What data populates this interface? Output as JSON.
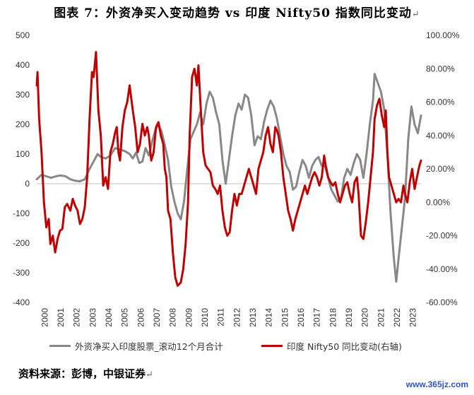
{
  "title": "图表 7：外资净买入变动趋势 vs 印度 Nifty50 指数同比变动",
  "title_mark": "↵",
  "source": "资料来源：彭博，中银证券",
  "source_mark": "↵",
  "watermark": "www.365jz.com",
  "chart_data": {
    "type": "line",
    "left_axis": {
      "min": -400,
      "max": 500,
      "ticks": [
        "500",
        "400",
        "300",
        "200",
        "100",
        "0",
        "-100",
        "-200",
        "-300",
        "-400"
      ]
    },
    "right_axis": {
      "min": -60,
      "max": 100,
      "ticks": [
        "100.00%",
        "80.00%",
        "60.00%",
        "40.00%",
        "20.00%",
        "0.00%",
        "-20.00%",
        "-40.00%",
        "-60.00%"
      ]
    },
    "x_labels": [
      "2000",
      "2001",
      "2002",
      "2003",
      "2004",
      "2005",
      "2006",
      "2007",
      "2008",
      "2009",
      "2010",
      "2011",
      "2012",
      "2013",
      "2014",
      "2015",
      "2016",
      "2017",
      "2018",
      "2019",
      "2020",
      "2021",
      "2022",
      "2023"
    ],
    "series": [
      {
        "name": "外资净买入印度股票_滚动12个月合计",
        "axis": "left",
        "color": "#888888",
        "points": [
          [
            2000.0,
            15
          ],
          [
            2000.3,
            30
          ],
          [
            2000.6,
            25
          ],
          [
            2000.9,
            20
          ],
          [
            2001.2,
            25
          ],
          [
            2001.5,
            28
          ],
          [
            2001.8,
            25
          ],
          [
            2002.1,
            15
          ],
          [
            2002.4,
            10
          ],
          [
            2002.7,
            8
          ],
          [
            2003.0,
            15
          ],
          [
            2003.3,
            50
          ],
          [
            2003.6,
            80
          ],
          [
            2003.8,
            100
          ],
          [
            2004.0,
            90
          ],
          [
            2004.3,
            85
          ],
          [
            2004.6,
            95
          ],
          [
            2004.9,
            120
          ],
          [
            2005.2,
            115
          ],
          [
            2005.5,
            110
          ],
          [
            2005.8,
            100
          ],
          [
            2006.0,
            85
          ],
          [
            2006.2,
            105
          ],
          [
            2006.4,
            70
          ],
          [
            2006.6,
            75
          ],
          [
            2006.8,
            120
          ],
          [
            2007.0,
            95
          ],
          [
            2007.2,
            140
          ],
          [
            2007.4,
            180
          ],
          [
            2007.6,
            200
          ],
          [
            2007.8,
            175
          ],
          [
            2008.0,
            130
          ],
          [
            2008.2,
            80
          ],
          [
            2008.4,
            -10
          ],
          [
            2008.6,
            -60
          ],
          [
            2008.8,
            -100
          ],
          [
            2009.0,
            -120
          ],
          [
            2009.2,
            -60
          ],
          [
            2009.4,
            50
          ],
          [
            2009.6,
            150
          ],
          [
            2009.8,
            175
          ],
          [
            2010.0,
            200
          ],
          [
            2010.2,
            240
          ],
          [
            2010.4,
            200
          ],
          [
            2010.6,
            270
          ],
          [
            2010.8,
            310
          ],
          [
            2011.0,
            290
          ],
          [
            2011.2,
            240
          ],
          [
            2011.4,
            200
          ],
          [
            2011.6,
            80
          ],
          [
            2011.8,
            0
          ],
          [
            2012.0,
            80
          ],
          [
            2012.2,
            160
          ],
          [
            2012.4,
            230
          ],
          [
            2012.6,
            270
          ],
          [
            2012.8,
            250
          ],
          [
            2013.0,
            300
          ],
          [
            2013.2,
            290
          ],
          [
            2013.4,
            230
          ],
          [
            2013.6,
            130
          ],
          [
            2013.8,
            160
          ],
          [
            2014.0,
            150
          ],
          [
            2014.2,
            210
          ],
          [
            2014.4,
            250
          ],
          [
            2014.6,
            280
          ],
          [
            2014.8,
            260
          ],
          [
            2015.0,
            220
          ],
          [
            2015.2,
            160
          ],
          [
            2015.4,
            100
          ],
          [
            2015.6,
            60
          ],
          [
            2015.8,
            40
          ],
          [
            2016.0,
            -20
          ],
          [
            2016.2,
            -10
          ],
          [
            2016.4,
            40
          ],
          [
            2016.6,
            80
          ],
          [
            2016.8,
            60
          ],
          [
            2017.0,
            20
          ],
          [
            2017.2,
            60
          ],
          [
            2017.4,
            80
          ],
          [
            2017.6,
            90
          ],
          [
            2017.8,
            60
          ],
          [
            2018.0,
            60
          ],
          [
            2018.2,
            20
          ],
          [
            2018.4,
            -20
          ],
          [
            2018.6,
            -40
          ],
          [
            2018.8,
            -60
          ],
          [
            2019.0,
            -50
          ],
          [
            2019.2,
            20
          ],
          [
            2019.4,
            50
          ],
          [
            2019.6,
            30
          ],
          [
            2019.8,
            70
          ],
          [
            2020.0,
            100
          ],
          [
            2020.2,
            80
          ],
          [
            2020.4,
            20
          ],
          [
            2020.6,
            100
          ],
          [
            2020.8,
            200
          ],
          [
            2021.0,
            280
          ],
          [
            2021.1,
            370
          ],
          [
            2021.3,
            340
          ],
          [
            2021.5,
            310
          ],
          [
            2021.7,
            250
          ],
          [
            2021.9,
            100
          ],
          [
            2022.1,
            -100
          ],
          [
            2022.3,
            -250
          ],
          [
            2022.45,
            -330
          ],
          [
            2022.6,
            -250
          ],
          [
            2022.8,
            -150
          ],
          [
            2023.0,
            -50
          ],
          [
            2023.2,
            150
          ],
          [
            2023.4,
            260
          ],
          [
            2023.6,
            200
          ],
          [
            2023.8,
            170
          ],
          [
            2024.0,
            230
          ]
        ]
      },
      {
        "name": "印度 Nifty50 同比变动(右轴)",
        "axis": "right",
        "color": "#c00000",
        "points": [
          [
            2000.0,
            70
          ],
          [
            2000.05,
            78
          ],
          [
            2000.15,
            50
          ],
          [
            2000.3,
            30
          ],
          [
            2000.45,
            0
          ],
          [
            2000.6,
            -15
          ],
          [
            2000.75,
            -10
          ],
          [
            2000.85,
            -25
          ],
          [
            2001.0,
            -20
          ],
          [
            2001.15,
            -30
          ],
          [
            2001.3,
            -22
          ],
          [
            2001.45,
            -17
          ],
          [
            2001.6,
            -16
          ],
          [
            2001.75,
            -3
          ],
          [
            2001.9,
            -1
          ],
          [
            2002.1,
            -5
          ],
          [
            2002.25,
            2
          ],
          [
            2002.4,
            -2
          ],
          [
            2002.55,
            -5
          ],
          [
            2002.7,
            -13
          ],
          [
            2002.85,
            -10
          ],
          [
            2003.0,
            -3
          ],
          [
            2003.15,
            15
          ],
          [
            2003.3,
            50
          ],
          [
            2003.45,
            78
          ],
          [
            2003.55,
            75
          ],
          [
            2003.7,
            90
          ],
          [
            2003.85,
            55
          ],
          [
            2004.0,
            40
          ],
          [
            2004.15,
            10
          ],
          [
            2004.3,
            15
          ],
          [
            2004.45,
            8
          ],
          [
            2004.6,
            30
          ],
          [
            2004.75,
            35
          ],
          [
            2004.9,
            42
          ],
          [
            2005.0,
            45
          ],
          [
            2005.1,
            30
          ],
          [
            2005.2,
            25
          ],
          [
            2005.35,
            45
          ],
          [
            2005.5,
            55
          ],
          [
            2005.65,
            60
          ],
          [
            2005.8,
            70
          ],
          [
            2006.0,
            55
          ],
          [
            2006.15,
            45
          ],
          [
            2006.3,
            30
          ],
          [
            2006.45,
            35
          ],
          [
            2006.6,
            47
          ],
          [
            2006.75,
            40
          ],
          [
            2006.9,
            45
          ],
          [
            2007.0,
            40
          ],
          [
            2007.15,
            25
          ],
          [
            2007.3,
            30
          ],
          [
            2007.45,
            45
          ],
          [
            2007.6,
            48
          ],
          [
            2007.75,
            40
          ],
          [
            2007.9,
            35
          ],
          [
            2008.0,
            20
          ],
          [
            2008.1,
            15
          ],
          [
            2008.2,
            -5
          ],
          [
            2008.35,
            -10
          ],
          [
            2008.5,
            -30
          ],
          [
            2008.65,
            -45
          ],
          [
            2008.8,
            -50
          ],
          [
            2009.0,
            -48
          ],
          [
            2009.15,
            -40
          ],
          [
            2009.3,
            -25
          ],
          [
            2009.45,
            0
          ],
          [
            2009.55,
            40
          ],
          [
            2009.7,
            75
          ],
          [
            2009.85,
            80
          ],
          [
            2010.0,
            70
          ],
          [
            2010.1,
            82
          ],
          [
            2010.25,
            55
          ],
          [
            2010.4,
            30
          ],
          [
            2010.55,
            22
          ],
          [
            2010.7,
            20
          ],
          [
            2010.85,
            18
          ],
          [
            2011.0,
            10
          ],
          [
            2011.15,
            8
          ],
          [
            2011.3,
            5
          ],
          [
            2011.45,
            10
          ],
          [
            2011.6,
            -5
          ],
          [
            2011.75,
            -15
          ],
          [
            2011.9,
            -20
          ],
          [
            2012.05,
            -18
          ],
          [
            2012.2,
            -5
          ],
          [
            2012.35,
            5
          ],
          [
            2012.5,
            -2
          ],
          [
            2012.65,
            5
          ],
          [
            2012.8,
            5
          ],
          [
            2012.95,
            10
          ],
          [
            2013.1,
            15
          ],
          [
            2013.25,
            20
          ],
          [
            2013.4,
            15
          ],
          [
            2013.55,
            10
          ],
          [
            2013.7,
            5
          ],
          [
            2013.85,
            20
          ],
          [
            2014.0,
            25
          ],
          [
            2014.15,
            30
          ],
          [
            2014.3,
            40
          ],
          [
            2014.45,
            45
          ],
          [
            2014.6,
            35
          ],
          [
            2014.75,
            30
          ],
          [
            2014.9,
            45
          ],
          [
            2015.0,
            43
          ],
          [
            2015.1,
            40
          ],
          [
            2015.25,
            30
          ],
          [
            2015.4,
            15
          ],
          [
            2015.55,
            5
          ],
          [
            2015.7,
            -5
          ],
          [
            2015.85,
            -10
          ],
          [
            2016.0,
            -17
          ],
          [
            2016.15,
            -10
          ],
          [
            2016.3,
            -5
          ],
          [
            2016.45,
            0
          ],
          [
            2016.6,
            5
          ],
          [
            2016.75,
            10
          ],
          [
            2016.9,
            5
          ],
          [
            2017.05,
            10
          ],
          [
            2017.2,
            15
          ],
          [
            2017.35,
            18
          ],
          [
            2017.5,
            15
          ],
          [
            2017.65,
            10
          ],
          [
            2017.8,
            15
          ],
          [
            2017.95,
            28
          ],
          [
            2018.05,
            22
          ],
          [
            2018.2,
            15
          ],
          [
            2018.35,
            12
          ],
          [
            2018.5,
            10
          ],
          [
            2018.65,
            12
          ],
          [
            2018.8,
            5
          ],
          [
            2018.95,
            0
          ],
          [
            2019.1,
            5
          ],
          [
            2019.25,
            10
          ],
          [
            2019.4,
            12
          ],
          [
            2019.55,
            5
          ],
          [
            2019.7,
            0
          ],
          [
            2019.85,
            12
          ],
          [
            2020.0,
            15
          ],
          [
            2020.1,
            5
          ],
          [
            2020.25,
            -20
          ],
          [
            2020.4,
            -22
          ],
          [
            2020.55,
            -12
          ],
          [
            2020.7,
            0
          ],
          [
            2020.85,
            15
          ],
          [
            2021.0,
            30
          ],
          [
            2021.1,
            50
          ],
          [
            2021.25,
            58
          ],
          [
            2021.4,
            62
          ],
          [
            2021.55,
            52
          ],
          [
            2021.7,
            45
          ],
          [
            2021.8,
            55
          ],
          [
            2021.9,
            30
          ],
          [
            2022.0,
            15
          ],
          [
            2022.15,
            10
          ],
          [
            2022.3,
            5
          ],
          [
            2022.45,
            0
          ],
          [
            2022.6,
            2
          ],
          [
            2022.75,
            0
          ],
          [
            2022.9,
            10
          ],
          [
            2023.0,
            5
          ],
          [
            2023.15,
            0
          ],
          [
            2023.3,
            12
          ],
          [
            2023.45,
            20
          ],
          [
            2023.6,
            8
          ],
          [
            2023.75,
            15
          ],
          [
            2023.9,
            22
          ],
          [
            2024.0,
            25
          ]
        ]
      }
    ],
    "legend_position": "bottom"
  }
}
